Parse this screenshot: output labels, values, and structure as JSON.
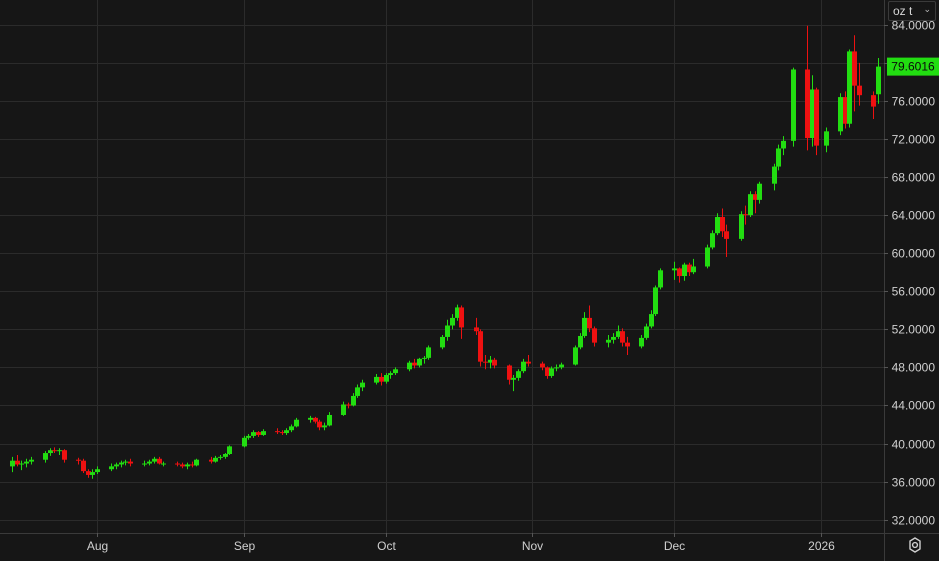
{
  "unit_selector": {
    "value": "oz t",
    "chevron": "chevron-down-icon"
  },
  "settings": {
    "icon": "gear-icon"
  },
  "colors": {
    "background": "#161616",
    "grid": "#2b2b2b",
    "axis_text": "#d0d0d0",
    "up": "#22dd11",
    "down": "#ee1111",
    "price_label_bg": "#22dd11",
    "price_label_text": "#0b0b0b"
  },
  "chart_data": {
    "type": "candlestick",
    "y_tick_labels": [
      "84.0000",
      "80.0000",
      "76.0000",
      "72.0000",
      "68.0000",
      "64.0000",
      "60.0000",
      "56.0000",
      "52.0000",
      "48.0000",
      "44.0000",
      "40.0000",
      "36.0000",
      "32.0000"
    ],
    "y_ticks": [
      84,
      80,
      76,
      72,
      68,
      64,
      60,
      56,
      52,
      48,
      44,
      40,
      36,
      32
    ],
    "ylim": [
      30.6,
      86.6
    ],
    "x_tick_labels": [
      {
        "label": "Aug",
        "date": "2025-08-01"
      },
      {
        "label": "Sep",
        "date": "2025-09-01"
      },
      {
        "label": "Oct",
        "date": "2025-10-01"
      },
      {
        "label": "Nov",
        "date": "2025-11-01"
      },
      {
        "label": "Dec",
        "date": "2025-12-01"
      },
      {
        "label": "2026",
        "date": "2026-01-01"
      }
    ],
    "last_price_label": "79.6016",
    "last_price": 79.6016,
    "grid": true,
    "candles": [
      [
        "2025-07-14",
        37.6,
        38.6,
        37.0,
        38.2
      ],
      [
        "2025-07-15",
        38.2,
        38.8,
        37.6,
        37.8
      ],
      [
        "2025-07-16",
        37.8,
        38.2,
        37.2,
        37.9
      ],
      [
        "2025-07-17",
        37.9,
        38.4,
        37.5,
        38.1
      ],
      [
        "2025-07-18",
        38.1,
        38.6,
        37.8,
        38.3
      ],
      [
        "2025-07-21",
        38.3,
        39.2,
        38.0,
        39.0
      ],
      [
        "2025-07-22",
        39.0,
        39.5,
        38.7,
        39.3
      ],
      [
        "2025-07-23",
        39.3,
        39.6,
        39.0,
        39.2
      ],
      [
        "2025-07-24",
        39.2,
        39.5,
        38.8,
        39.3
      ],
      [
        "2025-07-25",
        39.3,
        39.4,
        38.0,
        38.3
      ],
      [
        "2025-07-28",
        38.3,
        38.5,
        37.8,
        38.2
      ],
      [
        "2025-07-29",
        38.2,
        38.4,
        36.9,
        37.1
      ],
      [
        "2025-07-30",
        37.1,
        37.3,
        36.4,
        36.7
      ],
      [
        "2025-07-31",
        36.7,
        37.3,
        36.3,
        37.0
      ],
      [
        "2025-08-01",
        37.0,
        37.6,
        36.8,
        37.3
      ],
      [
        "2025-08-04",
        37.3,
        37.9,
        37.1,
        37.6
      ],
      [
        "2025-08-05",
        37.6,
        38.0,
        37.3,
        37.8
      ],
      [
        "2025-08-06",
        37.8,
        38.2,
        37.5,
        38.0
      ],
      [
        "2025-08-07",
        38.0,
        38.3,
        37.7,
        38.1
      ],
      [
        "2025-08-08",
        38.1,
        38.4,
        37.6,
        37.9
      ],
      [
        "2025-08-11",
        37.9,
        38.2,
        37.6,
        37.9
      ],
      [
        "2025-08-12",
        37.9,
        38.3,
        37.7,
        38.1
      ],
      [
        "2025-08-13",
        38.1,
        38.6,
        37.9,
        38.4
      ],
      [
        "2025-08-14",
        38.4,
        38.6,
        37.8,
        37.9
      ],
      [
        "2025-08-15",
        37.9,
        38.1,
        37.6,
        37.9
      ],
      [
        "2025-08-18",
        37.9,
        38.1,
        37.6,
        37.8
      ],
      [
        "2025-08-19",
        37.8,
        38.0,
        37.4,
        37.6
      ],
      [
        "2025-08-20",
        37.6,
        38.0,
        37.3,
        37.8
      ],
      [
        "2025-08-21",
        37.8,
        38.1,
        37.5,
        37.7
      ],
      [
        "2025-08-22",
        37.7,
        38.4,
        37.6,
        38.3
      ],
      [
        "2025-08-25",
        38.3,
        38.6,
        37.9,
        38.1
      ],
      [
        "2025-08-26",
        38.1,
        38.7,
        38.0,
        38.5
      ],
      [
        "2025-08-27",
        38.5,
        38.8,
        38.3,
        38.6
      ],
      [
        "2025-08-28",
        38.6,
        39.0,
        38.4,
        38.9
      ],
      [
        "2025-08-29",
        38.9,
        39.8,
        38.8,
        39.7
      ],
      [
        "2025-09-01",
        39.7,
        40.8,
        39.6,
        40.6
      ],
      [
        "2025-09-02",
        40.6,
        41.0,
        40.4,
        40.8
      ],
      [
        "2025-09-03",
        40.8,
        41.4,
        40.6,
        41.2
      ],
      [
        "2025-09-04",
        41.2,
        41.3,
        40.7,
        40.9
      ],
      [
        "2025-09-05",
        40.9,
        41.5,
        40.8,
        41.3
      ],
      [
        "2025-09-08",
        41.3,
        41.6,
        41.0,
        41.2
      ],
      [
        "2025-09-09",
        41.2,
        41.4,
        40.9,
        41.1
      ],
      [
        "2025-09-10",
        41.1,
        41.6,
        40.9,
        41.4
      ],
      [
        "2025-09-11",
        41.4,
        42.0,
        41.2,
        41.8
      ],
      [
        "2025-09-12",
        41.8,
        42.7,
        41.7,
        42.5
      ],
      [
        "2025-09-15",
        42.5,
        42.9,
        42.2,
        42.7
      ],
      [
        "2025-09-16",
        42.7,
        42.8,
        42.1,
        42.3
      ],
      [
        "2025-09-17",
        42.3,
        42.5,
        41.4,
        41.7
      ],
      [
        "2025-09-18",
        41.7,
        42.2,
        41.4,
        41.9
      ],
      [
        "2025-09-19",
        41.9,
        43.3,
        41.8,
        43.0
      ],
      [
        "2025-09-22",
        43.0,
        44.4,
        42.9,
        44.1
      ],
      [
        "2025-09-23",
        44.1,
        44.3,
        43.7,
        44.0
      ],
      [
        "2025-09-24",
        44.0,
        45.3,
        43.9,
        45.0
      ],
      [
        "2025-09-25",
        45.0,
        46.2,
        44.8,
        45.9
      ],
      [
        "2025-09-26",
        45.9,
        46.7,
        45.5,
        46.4
      ],
      [
        "2025-09-29",
        46.4,
        47.3,
        46.2,
        47.0
      ],
      [
        "2025-09-30",
        47.0,
        47.4,
        46.1,
        46.5
      ],
      [
        "2025-10-01",
        46.5,
        47.4,
        46.3,
        47.2
      ],
      [
        "2025-10-02",
        47.2,
        47.6,
        46.8,
        47.4
      ],
      [
        "2025-10-03",
        47.4,
        48.0,
        47.2,
        47.8
      ],
      [
        "2025-10-06",
        47.8,
        48.7,
        47.6,
        48.5
      ],
      [
        "2025-10-07",
        48.5,
        48.9,
        47.9,
        48.2
      ],
      [
        "2025-10-08",
        48.2,
        49.0,
        48.0,
        48.9
      ],
      [
        "2025-10-09",
        48.9,
        49.2,
        48.4,
        49.0
      ],
      [
        "2025-10-10",
        49.0,
        50.3,
        48.8,
        50.1
      ],
      [
        "2025-10-13",
        50.1,
        51.4,
        49.9,
        51.2
      ],
      [
        "2025-10-14",
        51.2,
        53.0,
        50.8,
        52.4
      ],
      [
        "2025-10-15",
        52.4,
        53.6,
        52.0,
        53.2
      ],
      [
        "2025-10-16",
        53.2,
        54.6,
        52.9,
        54.3
      ],
      [
        "2025-10-17",
        54.3,
        54.5,
        51.0,
        52.2
      ],
      [
        "2025-10-20",
        52.2,
        53.2,
        51.4,
        51.8
      ],
      [
        "2025-10-21",
        51.8,
        52.0,
        48.1,
        48.6
      ],
      [
        "2025-10-22",
        48.6,
        49.3,
        47.8,
        48.5
      ],
      [
        "2025-10-23",
        48.5,
        49.2,
        47.9,
        48.8
      ],
      [
        "2025-10-24",
        48.8,
        49.0,
        47.9,
        48.2
      ],
      [
        "2025-10-27",
        48.2,
        48.3,
        46.2,
        46.7
      ],
      [
        "2025-10-28",
        46.7,
        47.2,
        45.5,
        46.9
      ],
      [
        "2025-10-29",
        46.9,
        47.8,
        46.6,
        47.6
      ],
      [
        "2025-10-30",
        47.6,
        48.9,
        47.4,
        48.6
      ],
      [
        "2025-10-31",
        48.6,
        49.3,
        48.1,
        48.4
      ],
      [
        "2025-11-03",
        48.4,
        48.6,
        47.7,
        48.0
      ],
      [
        "2025-11-04",
        48.0,
        48.1,
        46.8,
        47.1
      ],
      [
        "2025-11-05",
        47.1,
        48.1,
        46.9,
        47.9
      ],
      [
        "2025-11-06",
        47.9,
        48.3,
        47.6,
        48.0
      ],
      [
        "2025-11-07",
        48.0,
        48.5,
        47.8,
        48.3
      ],
      [
        "2025-11-10",
        48.3,
        50.3,
        48.2,
        50.1
      ],
      [
        "2025-11-11",
        50.1,
        51.6,
        49.9,
        51.3
      ],
      [
        "2025-11-12",
        51.3,
        53.8,
        51.1,
        53.2
      ],
      [
        "2025-11-13",
        53.2,
        54.5,
        51.7,
        52.1
      ],
      [
        "2025-11-14",
        52.1,
        52.3,
        50.2,
        50.6
      ],
      [
        "2025-11-17",
        50.6,
        51.4,
        50.1,
        50.9
      ],
      [
        "2025-11-18",
        50.9,
        51.6,
        50.5,
        51.2
      ],
      [
        "2025-11-19",
        51.2,
        52.4,
        51.0,
        51.8
      ],
      [
        "2025-11-20",
        51.8,
        52.1,
        50.2,
        50.6
      ],
      [
        "2025-11-21",
        50.6,
        51.2,
        49.3,
        50.2
      ],
      [
        "2025-11-24",
        50.2,
        51.4,
        50.0,
        51.1
      ],
      [
        "2025-11-25",
        51.1,
        52.6,
        50.9,
        52.3
      ],
      [
        "2025-11-26",
        52.3,
        54.0,
        52.1,
        53.6
      ],
      [
        "2025-11-27",
        53.6,
        56.6,
        53.4,
        56.4
      ],
      [
        "2025-11-28",
        56.4,
        58.4,
        56.2,
        58.2
      ],
      [
        "2025-12-01",
        58.2,
        59.1,
        57.2,
        58.4
      ],
      [
        "2025-12-02",
        58.4,
        58.5,
        56.9,
        57.6
      ],
      [
        "2025-12-03",
        57.6,
        59.0,
        57.1,
        58.8
      ],
      [
        "2025-12-04",
        58.8,
        59.0,
        57.6,
        58.0
      ],
      [
        "2025-12-05",
        58.0,
        59.4,
        57.8,
        58.6
      ],
      [
        "2025-12-08",
        58.6,
        60.9,
        58.4,
        60.6
      ],
      [
        "2025-12-09",
        60.6,
        62.4,
        60.4,
        62.1
      ],
      [
        "2025-12-10",
        62.1,
        64.2,
        61.9,
        63.8
      ],
      [
        "2025-12-11",
        63.8,
        64.7,
        61.7,
        62.3
      ],
      [
        "2025-12-12",
        62.3,
        63.0,
        59.6,
        61.5
      ],
      [
        "2025-12-15",
        61.5,
        64.4,
        61.3,
        64.1
      ],
      [
        "2025-12-16",
        64.1,
        65.0,
        63.0,
        64.0
      ],
      [
        "2025-12-17",
        64.0,
        66.5,
        63.8,
        66.2
      ],
      [
        "2025-12-18",
        66.2,
        66.5,
        64.2,
        65.6
      ],
      [
        "2025-12-19",
        65.6,
        67.5,
        65.2,
        67.3
      ],
      [
        "2025-12-22",
        67.3,
        69.4,
        66.6,
        69.1
      ],
      [
        "2025-12-23",
        69.1,
        71.4,
        68.7,
        71.0
      ],
      [
        "2025-12-24",
        71.0,
        72.3,
        70.3,
        71.8
      ],
      [
        "2025-12-26",
        71.8,
        79.5,
        71.2,
        79.3
      ],
      [
        "2025-12-29",
        79.3,
        83.9,
        70.8,
        72.1
      ],
      [
        "2025-12-30",
        72.1,
        78.7,
        71.2,
        77.2
      ],
      [
        "2025-12-31",
        77.2,
        77.4,
        70.3,
        71.3
      ],
      [
        "2026-01-02",
        71.3,
        73.2,
        70.6,
        72.8
      ],
      [
        "2026-01-05",
        72.8,
        76.8,
        72.4,
        76.4
      ],
      [
        "2026-01-06",
        76.4,
        77.0,
        73.1,
        73.6
      ],
      [
        "2026-01-07",
        73.6,
        81.4,
        73.2,
        81.2
      ],
      [
        "2026-01-08",
        81.2,
        82.9,
        74.9,
        77.6
      ],
      [
        "2026-01-09",
        77.6,
        80.0,
        75.5,
        76.6
      ],
      [
        "2026-01-12",
        76.6,
        77.0,
        74.1,
        75.4
      ],
      [
        "2026-01-13",
        76.7,
        80.5,
        75.7,
        79.6016
      ]
    ]
  }
}
